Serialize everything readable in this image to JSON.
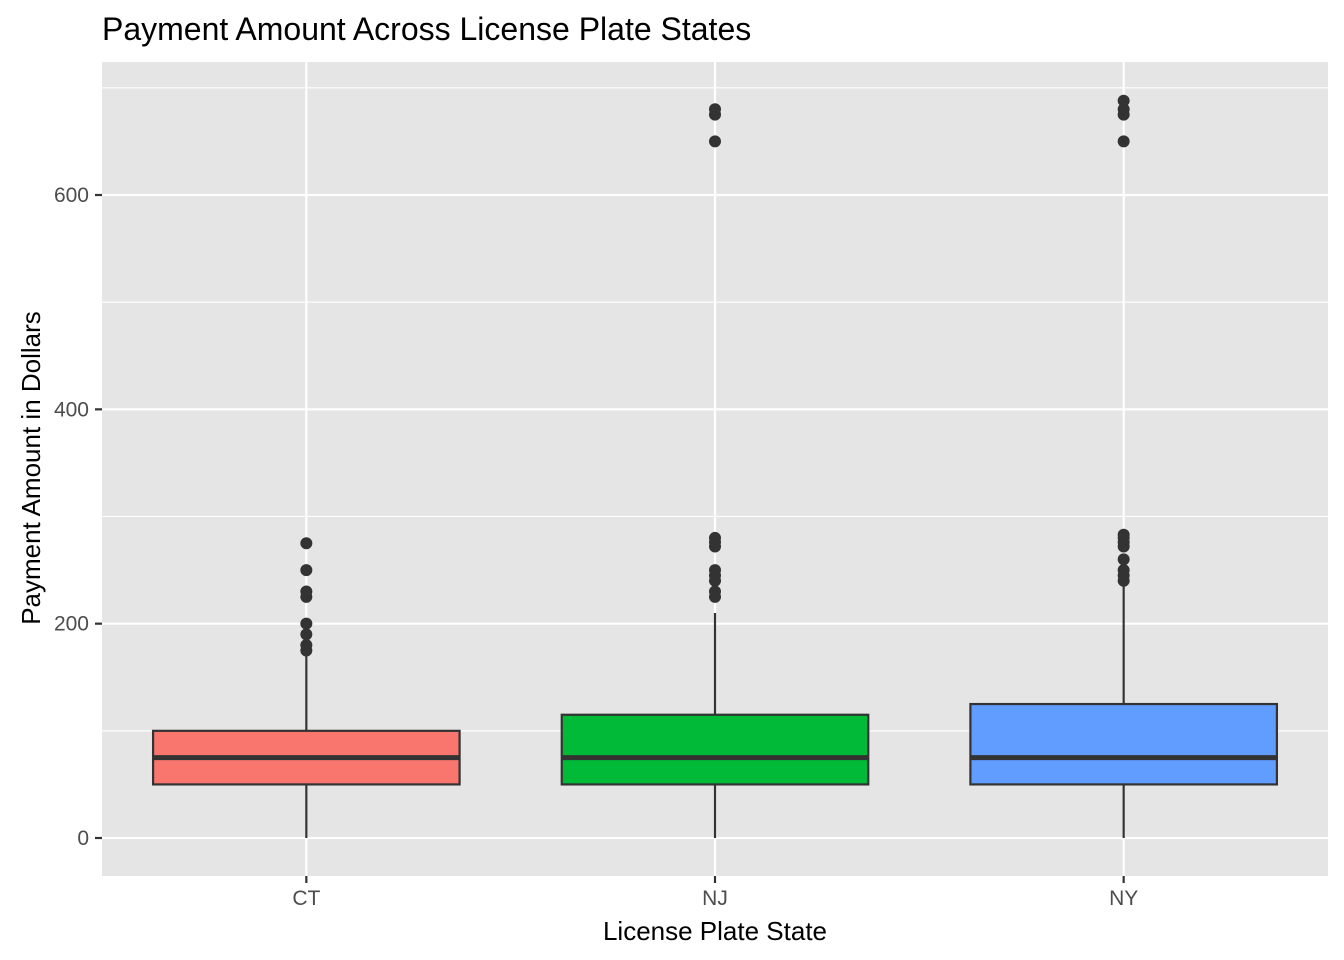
{
  "chart_data": {
    "type": "boxplot",
    "title": "Payment Amount Across License Plate States",
    "xlabel": "License Plate State",
    "ylabel": "Payment Amount in Dollars",
    "ylim": [
      -35,
      725
    ],
    "y_ticks": [
      0,
      200,
      400,
      600
    ],
    "y_tick_labels": [
      "0",
      "200",
      "400",
      "600"
    ],
    "categories": [
      "CT",
      "NJ",
      "NY"
    ],
    "grid": true,
    "legend": "none",
    "boxes": [
      {
        "category": "CT",
        "color": "#F8766D",
        "whisker_low": 0,
        "q1": 50,
        "median": 75,
        "q3": 100,
        "whisker_high": 170,
        "outliers": [
          175,
          180,
          190,
          200,
          225,
          230,
          250,
          275
        ]
      },
      {
        "category": "NJ",
        "color": "#00BA38",
        "whisker_low": 0,
        "q1": 50,
        "median": 75,
        "q3": 115,
        "whisker_high": 210,
        "outliers": [
          225,
          230,
          240,
          245,
          250,
          272,
          276,
          280,
          650,
          675,
          680
        ]
      },
      {
        "category": "NY",
        "color": "#619CFF",
        "whisker_low": 0,
        "q1": 50,
        "median": 75,
        "q3": 125,
        "whisker_high": 235,
        "outliers": [
          240,
          245,
          250,
          260,
          272,
          276,
          280,
          283,
          650,
          675,
          680,
          688
        ]
      }
    ]
  }
}
